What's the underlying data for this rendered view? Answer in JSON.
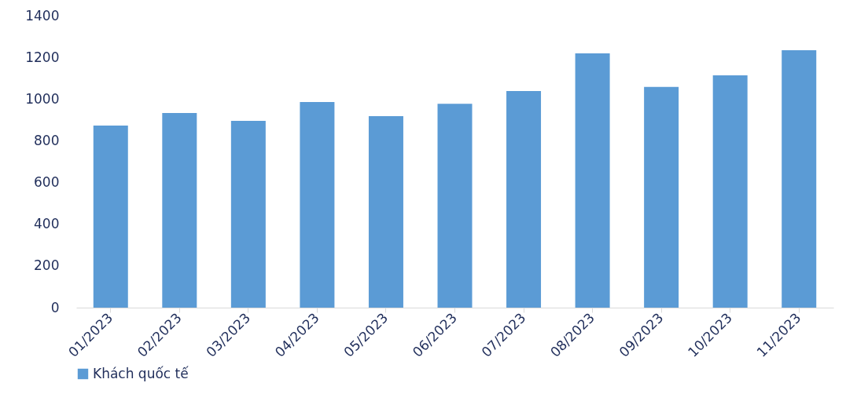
{
  "chart_data": {
    "type": "bar",
    "categories": [
      "01/2023",
      "02/2023",
      "03/2023",
      "04/2023",
      "05/2023",
      "06/2023",
      "07/2023",
      "08/2023",
      "09/2023",
      "10/2023",
      "11/2023"
    ],
    "series": [
      {
        "name": "Khách quốc tế",
        "color": "#5b9bd5",
        "values": [
          873,
          933,
          896,
          986,
          918,
          978,
          1039,
          1219,
          1058,
          1114,
          1234
        ]
      }
    ],
    "ylim": [
      0,
      1400
    ],
    "yticks": [
      0,
      200,
      400,
      600,
      800,
      1000,
      1200,
      1400
    ],
    "grid": false,
    "legend": "bottom"
  }
}
